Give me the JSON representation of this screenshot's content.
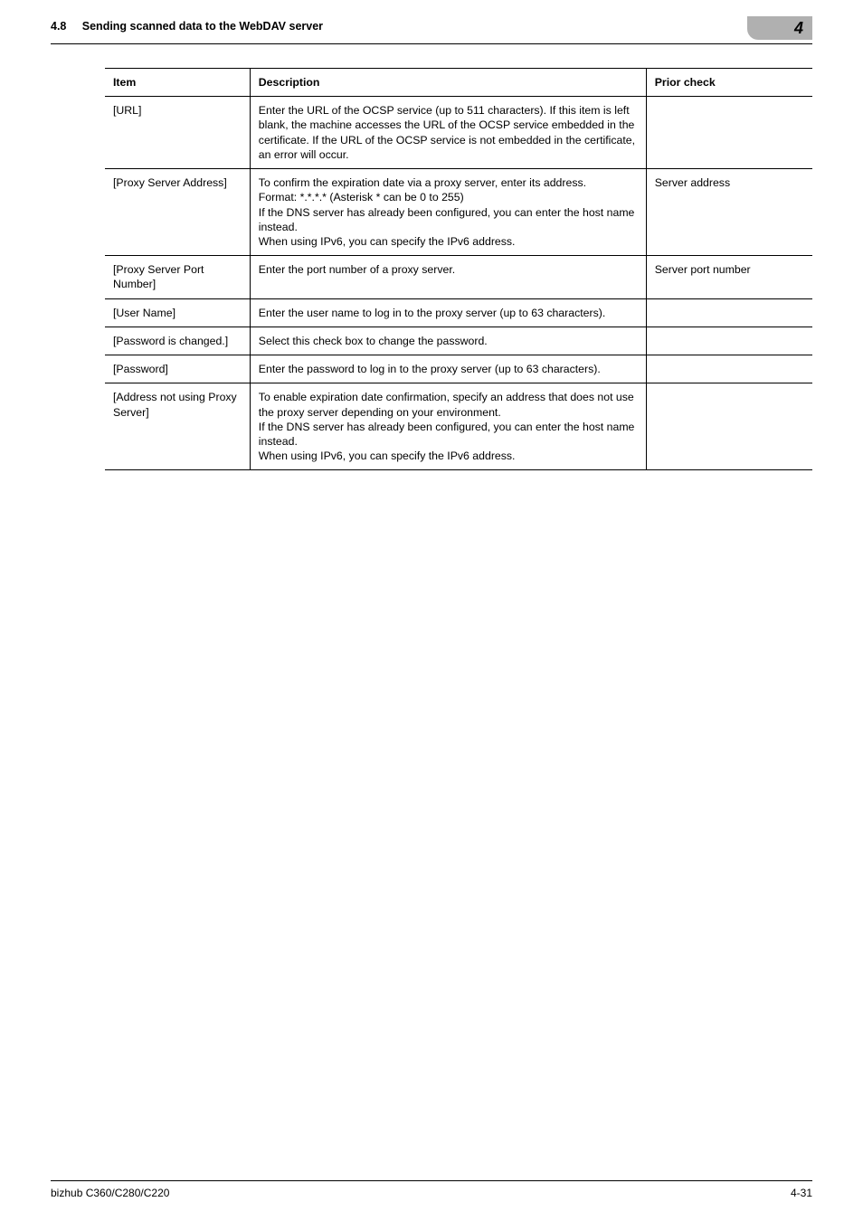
{
  "header": {
    "section_number": "4.8",
    "section_title": "Sending scanned data to the WebDAV server",
    "chapter_number": "4"
  },
  "table": {
    "columns": [
      "Item",
      "Description",
      "Prior check"
    ],
    "rows": [
      {
        "item": "[URL]",
        "description": "Enter the URL of the OCSP service (up to 511 characters). If this item is left blank, the machine accesses the URL of the OCSP service embedded in the certificate. If the URL of the OCSP service is not embedded in the certificate, an error will occur.",
        "prior": ""
      },
      {
        "item": "[Proxy Server Address]",
        "description": "To confirm the expiration date via a proxy server, enter its address.\nFormat: *.*.*.* (Asterisk * can be 0 to 255)\nIf the DNS server has already been configured, you can enter the host name instead.\nWhen using IPv6, you can specify the IPv6 address.",
        "prior": "Server address"
      },
      {
        "item": "[Proxy Server Port Number]",
        "description": "Enter the port number of a proxy server.",
        "prior": "Server port number"
      },
      {
        "item": "[User Name]",
        "description": "Enter the user name to log in to the proxy server (up to 63 characters).",
        "prior": ""
      },
      {
        "item": "[Password is changed.]",
        "description": "Select this check box to change the password.",
        "prior": ""
      },
      {
        "item": "[Password]",
        "description": "Enter the password to log in to the proxy server (up to 63 characters).",
        "prior": ""
      },
      {
        "item": "[Address not using Proxy Server]",
        "description": "To enable expiration date confirmation, specify an address that does not use the proxy server depending on your environment.\nIf the DNS server has already been configured, you can enter the host name instead.\nWhen using IPv6, you can specify the IPv6 address.",
        "prior": ""
      }
    ]
  },
  "footer": {
    "left": "bizhub C360/C280/C220",
    "right": "4-31"
  }
}
